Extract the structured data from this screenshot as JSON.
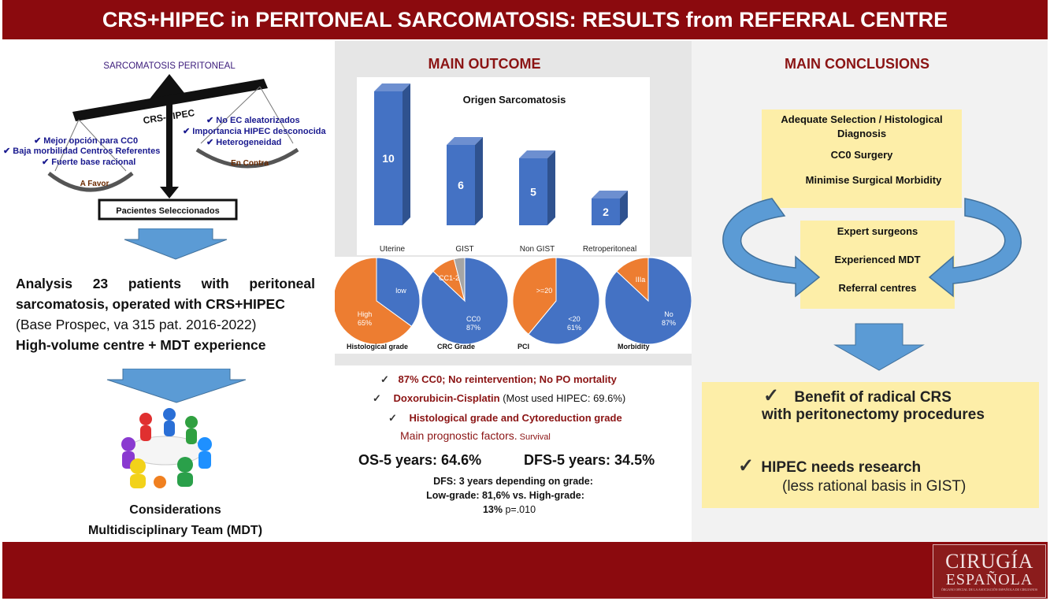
{
  "header": {
    "title": "CRS+HIPEC in PERITONEAL SARCOMATOSIS: RESULTS from REFERRAL CENTRE"
  },
  "left": {
    "balance": {
      "top_label": "SARCOMATOSIS PERITONEAL",
      "beam_label": "CRS-HIPEC",
      "favor_items": [
        "✔ Mejor opción para CC0",
        "✔ Baja morbilidad Centros Referentes",
        "✔ Fuerte base racional"
      ],
      "favor_label": "A Favor",
      "against_items": [
        "✔ No EC aleatorizados",
        "✔ Importancia HIPEC desconocida",
        "✔ Heterogeneidad"
      ],
      "against_label": "En Contra",
      "result_label": "Pacientes Seleccionados"
    },
    "analysis": {
      "line1": "Analysis 23 patients with peritoneal",
      "line2": "sarcomatosis, operated with CRS+HIPEC",
      "line3": "(Base Prospec, va 315 pat. 2016-2022)",
      "line4": "High-volume centre + MDT experience"
    },
    "considerations": {
      "line1": "Considerations",
      "line2": "Multidisciplinary Team (MDT)"
    }
  },
  "middle": {
    "title": "MAIN OUTCOME",
    "pies": [
      {
        "caption": "Histological grade",
        "slices": [
          {
            "label": "low",
            "value": 35,
            "color": "#4472c4"
          },
          {
            "label": "High 65%",
            "value": 65,
            "color": "#ed7d31"
          }
        ]
      },
      {
        "caption": "CRC Grade",
        "slices": [
          {
            "label": "CC0 87%",
            "value": 87,
            "color": "#4472c4"
          },
          {
            "label": "CC1-2",
            "value": 9,
            "color": "#ed7d31"
          },
          {
            "label": "",
            "value": 4,
            "color": "#a5a5a5"
          }
        ]
      },
      {
        "caption": "PCI",
        "slices": [
          {
            "label": "<20 61%",
            "value": 61,
            "color": "#4472c4"
          },
          {
            "label": ">=20",
            "value": 39,
            "color": "#ed7d31"
          }
        ]
      },
      {
        "caption": "Morbidity",
        "slices": [
          {
            "label": "No 87%",
            "value": 87,
            "color": "#4472c4"
          },
          {
            "label": "IIIa",
            "value": 13,
            "color": "#ed7d31"
          }
        ]
      }
    ],
    "results": {
      "r1": "87% CC0; No reintervention; No PO mortality",
      "r2_red": "Doxorubicin-Cisplatin",
      "r2_rest": " (Most used HIPEC: 69.6%)",
      "r3": "Histological grade and Cytoreduction grade",
      "r4_main": "Main prognostic factors.",
      "r4_small": " Survival",
      "os": "OS-5 years: 64.6%",
      "dfs": "DFS-5 years: 34.5%",
      "d1": "DFS: 3 years depending on grade:",
      "d2": "Low-grade: 81,6% vs. High-grade:",
      "d3_bold": "13%",
      "d3_rest": " p=.010"
    },
    "check": "✓"
  },
  "chart_data": {
    "type": "bar",
    "title": "Origen Sarcomatosis",
    "categories": [
      "Uterine",
      "GIST",
      "Non GIST",
      "Retroperitoneal"
    ],
    "values": [
      10,
      6,
      5,
      2
    ],
    "color": "#4472c4",
    "ylim": [
      0,
      10
    ]
  },
  "right": {
    "title": "MAIN CONCLUSIONS",
    "box1": [
      "Adequate Selection / Histological Diagnosis",
      "CC0 Surgery",
      "Minimise Surgical Morbidity"
    ],
    "box2": [
      "Expert surgeons",
      "Experienced MDT",
      "Referral centres"
    ],
    "c1a": "Benefit of radical CRS",
    "c1b": "with peritonectomy procedures",
    "c2a": "HIPEC needs research",
    "c2b": "(less rational basis in GIST)",
    "check": "✓"
  },
  "footer": {
    "logo_line1": "CIRUGÍA",
    "logo_line2": "ESPAÑOLA",
    "logo_line3": "ÓRGANO OFICIAL DE LA ASOCIACIÓN ESPAÑOLA DE CIRUJANOS"
  }
}
